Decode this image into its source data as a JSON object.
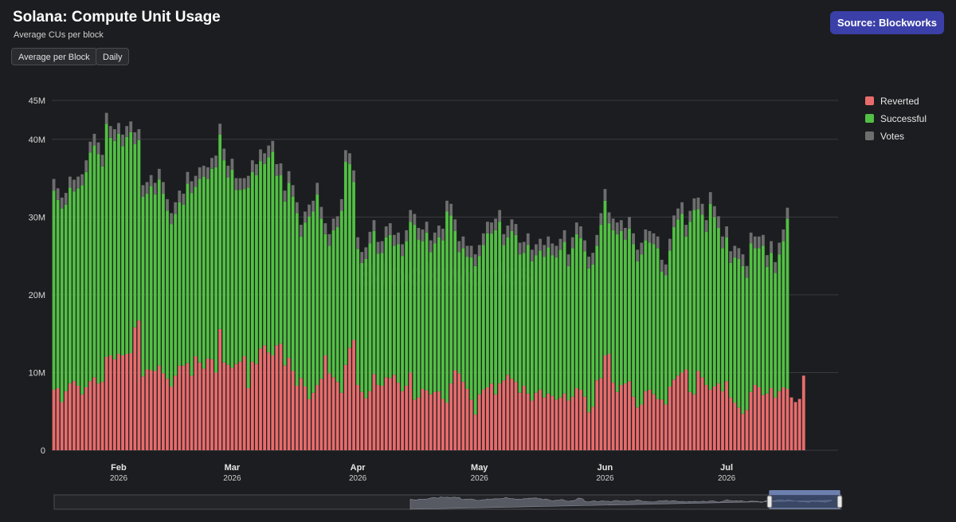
{
  "header": {
    "title": "Solana: Compute Unit Usage",
    "subtitle": "Average CUs per block",
    "buttons": {
      "aggregation": "Average per Block",
      "period": "Daily"
    },
    "source": "Source: Blockworks"
  },
  "watermark": "Blockworks",
  "colors": {
    "reverted": "#e86c6c",
    "successful": "#52c044",
    "votes": "#6e6e6e",
    "background": "#1c1d20",
    "grid": "#3a3b40",
    "source_button": "#3b3fa8",
    "navigator_mask": "#4c6396"
  },
  "chart_data": {
    "type": "bar",
    "stacked": true,
    "title": "Solana: Compute Unit Usage",
    "subtitle": "Average CUs per block",
    "x_range": [
      "2026-01-16",
      "2026-07-28"
    ],
    "x_axis": {
      "ticks": [
        {
          "date": "2026-02-01",
          "month": "Feb",
          "year": "2026"
        },
        {
          "date": "2026-03-01",
          "month": "Mar",
          "year": "2026"
        },
        {
          "date": "2026-04-01",
          "month": "Apr",
          "year": "2026"
        },
        {
          "date": "2026-05-01",
          "month": "May",
          "year": "2026"
        },
        {
          "date": "2026-06-01",
          "month": "Jun",
          "year": "2026"
        },
        {
          "date": "2026-07-01",
          "month": "Jul",
          "year": "2026"
        }
      ]
    },
    "y_axis": {
      "ylim": [
        0,
        45000000
      ],
      "ticks": [
        {
          "value": 0,
          "label": "0"
        },
        {
          "value": 10000000,
          "label": "10M"
        },
        {
          "value": 20000000,
          "label": "20M"
        },
        {
          "value": 30000000,
          "label": "30M"
        },
        {
          "value": 40000000,
          "label": "40M"
        },
        {
          "value": 45000000,
          "label": "45M"
        }
      ]
    },
    "grid": true,
    "legend_position": "right",
    "series": [
      {
        "name": "Reverted",
        "color": "#e86c6c",
        "values": [
          7.8,
          8.0,
          6.2,
          7.6,
          8.6,
          8.9,
          8.3,
          7.2,
          8.1,
          8.9,
          9.4,
          8.6,
          8.8,
          12.0,
          12.2,
          11.7,
          12.4,
          12.2,
          12.4,
          12.5,
          15.8,
          16.7,
          9.5,
          10.4,
          10.3,
          10.2,
          10.9,
          9.9,
          9.2,
          8.2,
          9.6,
          10.9,
          10.9,
          11.2,
          9.6,
          12.1,
          11.3,
          10.5,
          11.8,
          11.7,
          10.0,
          15.6,
          11.3,
          11.0,
          10.6,
          11.1,
          11.4,
          12.1,
          8.0,
          11.4,
          11.1,
          13.1,
          13.5,
          12.6,
          12.2,
          13.5,
          13.7,
          10.9,
          11.9,
          10.2,
          8.3,
          9.3,
          8.2,
          6.6,
          7.4,
          8.4,
          9.2,
          12.2,
          9.9,
          9.4,
          8.8,
          7.4,
          11.0,
          13.2,
          14.2,
          8.4,
          7.5,
          6.7,
          7.6,
          9.8,
          8.4,
          8.3,
          9.4,
          9.3,
          9.7,
          8.7,
          7.6,
          8.3,
          10.0,
          6.5,
          6.8,
          7.9,
          7.7,
          7.2,
          7.5,
          7.6,
          6.6,
          6.1,
          8.6,
          10.3,
          9.9,
          8.8,
          7.9,
          6.5,
          4.6,
          7.2,
          7.8,
          8.1,
          8.6,
          7.2,
          8.6,
          9.0,
          9.7,
          9.2,
          8.8,
          7.4,
          8.3,
          7.3,
          6.4,
          7.4,
          7.8,
          6.8,
          7.3,
          7.0,
          6.5,
          6.8,
          7.3,
          6.4,
          6.9,
          8.0,
          7.8,
          6.9,
          4.9,
          5.6,
          9.0,
          9.3,
          12.2,
          12.4,
          8.7,
          7.5,
          8.4,
          8.6,
          8.9,
          6.9,
          5.5,
          5.9,
          7.6,
          7.8,
          7.2,
          6.6,
          6.5,
          5.9,
          8.2,
          9.1,
          9.6,
          10.0,
          10.4,
          7.5,
          7.2,
          10.2,
          9.4,
          8.4,
          7.8,
          8.2,
          8.6,
          7.6,
          8.9,
          6.8,
          6.1,
          5.5,
          4.7,
          5.2,
          7.5,
          8.4,
          8.1,
          7.1,
          7.3,
          8.0,
          6.8,
          7.6,
          8.1,
          7.9,
          6.8,
          6.2,
          6.6,
          9.6
        ]
      },
      {
        "name": "Successful",
        "color": "#52c044",
        "values": [
          25.6,
          24.2,
          24.9,
          24.0,
          25.2,
          24.4,
          25.4,
          26.9,
          27.7,
          29.4,
          29.8,
          29.5,
          27.7,
          30.0,
          28.0,
          28.1,
          28.3,
          26.9,
          27.9,
          28.4,
          23.6,
          23.2,
          23.1,
          22.6,
          23.7,
          22.7,
          23.9,
          23.1,
          21.6,
          20.9,
          20.8,
          21.0,
          20.7,
          23.1,
          23.5,
          21.8,
          23.6,
          24.7,
          23.1,
          24.5,
          26.4,
          25.0,
          26.0,
          24.1,
          25.5,
          22.4,
          22.1,
          21.5,
          25.8,
          24.4,
          24.3,
          24.1,
          23.3,
          25.1,
          26.2,
          21.8,
          21.7,
          21.1,
          22.5,
          22.4,
          22.2,
          18.2,
          21.1,
          23.5,
          23.3,
          24.5,
          20.6,
          15.6,
          16.4,
          18.9,
          19.9,
          23.4,
          26.1,
          23.6,
          20.3,
          17.5,
          16.6,
          17.9,
          19.0,
          18.4,
          16.9,
          17.1,
          18.0,
          18.4,
          16.6,
          17.8,
          17.4,
          18.6,
          19.4,
          22.5,
          20.3,
          19.0,
          20.3,
          18.3,
          19.1,
          19.8,
          20.4,
          24.6,
          21.6,
          17.9,
          15.6,
          17.2,
          17.0,
          18.3,
          19.1,
          17.8,
          18.6,
          19.8,
          19.3,
          21.1,
          20.8,
          17.4,
          17.7,
          19.0,
          18.9,
          17.8,
          17.1,
          19.1,
          17.9,
          17.7,
          17.9,
          18.1,
          18.8,
          18.1,
          18.3,
          19.0,
          19.5,
          17.3,
          19.1,
          19.8,
          19.5,
          18.7,
          18.5,
          18.3,
          17.3,
          19.7,
          19.9,
          16.8,
          19.6,
          20.3,
          19.8,
          18.5,
          19.6,
          19.6,
          18.8,
          19.3,
          19.4,
          18.9,
          19.3,
          19.4,
          16.5,
          16.6,
          17.5,
          19.6,
          20.1,
          20.4,
          17.1,
          21.9,
          23.7,
          20.8,
          20.9,
          19.7,
          23.9,
          21.8,
          20.0,
          18.4,
          18.5,
          17.3,
          18.7,
          19.1,
          19.0,
          17.0,
          19.1,
          17.6,
          17.9,
          19.2,
          16.3,
          17.4,
          16.0,
          17.6,
          18.8,
          21.9
        ]
      },
      {
        "name": "Votes",
        "color": "#6e6e6e",
        "values": [
          1.5,
          1.5,
          1.4,
          1.5,
          1.4,
          1.5,
          1.5,
          1.4,
          1.5,
          1.4,
          1.5,
          1.5,
          1.5,
          1.4,
          1.5,
          1.5,
          1.4,
          1.5,
          1.4,
          1.4,
          1.5,
          1.4,
          1.5,
          1.5,
          1.4,
          1.5,
          1.4,
          1.5,
          1.5,
          1.4,
          1.5,
          1.5,
          1.4,
          1.5,
          1.5,
          1.4,
          1.5,
          1.4,
          1.5,
          1.4,
          1.5,
          1.4,
          1.5,
          1.5,
          1.4,
          1.5,
          1.5,
          1.4,
          1.5,
          1.5,
          1.4,
          1.5,
          1.4,
          1.5,
          1.4,
          1.5,
          1.5,
          1.4,
          1.5,
          1.5,
          1.4,
          1.5,
          1.4,
          1.5,
          1.4,
          1.5,
          1.5,
          1.4,
          1.5,
          1.5,
          1.4,
          1.5,
          1.5,
          1.4,
          1.5,
          1.5,
          1.4,
          1.5,
          1.5,
          1.4,
          1.5,
          1.5,
          1.4,
          1.5,
          1.4,
          1.5,
          1.5,
          1.4,
          1.5,
          1.4,
          1.5,
          1.5,
          1.4,
          1.5,
          1.4,
          1.5,
          1.5,
          1.4,
          1.5,
          1.5,
          1.4,
          1.5,
          1.4,
          1.5,
          1.5,
          1.4,
          1.5,
          1.5,
          1.4,
          1.5,
          1.5,
          1.4,
          1.5,
          1.5,
          1.4,
          1.5,
          1.4,
          1.5,
          1.5,
          1.4,
          1.5,
          1.5,
          1.4,
          1.5,
          1.5,
          1.4,
          1.5,
          1.5,
          1.4,
          1.5,
          1.5,
          1.4,
          1.5,
          1.5,
          1.4,
          1.5,
          1.5,
          1.4,
          1.5,
          1.5,
          1.4,
          1.5,
          1.5,
          1.4,
          1.5,
          1.5,
          1.4,
          1.5,
          1.4,
          1.5,
          1.5,
          1.4,
          1.5,
          1.5,
          1.4,
          1.5,
          1.5,
          1.4,
          1.5,
          1.5,
          1.4,
          1.5,
          1.5,
          1.4,
          1.5,
          1.5,
          1.4,
          1.5,
          1.5,
          1.4,
          1.5,
          1.5,
          1.4,
          1.5,
          1.5,
          1.4,
          1.5,
          1.5,
          1.4,
          1.5,
          1.5,
          1.4,
          1.5,
          1.5
        ]
      }
    ]
  }
}
